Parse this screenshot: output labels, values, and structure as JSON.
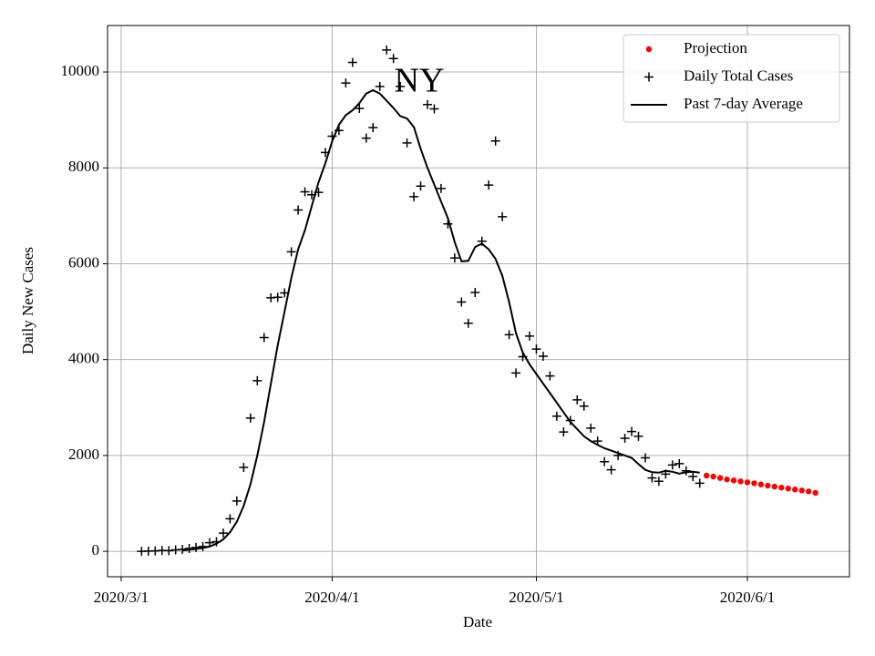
{
  "chart_data": {
    "type": "line",
    "annotations": [
      "NY"
    ],
    "xlabel": "Date",
    "ylabel": "Daily New Cases",
    "xlim": [
      "2020/2/28",
      "2020/6/16"
    ],
    "xticks": [
      "2020/3/1",
      "2020/4/1",
      "2020/5/1",
      "2020/6/1"
    ],
    "ylim": [
      -530,
      10970
    ],
    "yticks": [
      0,
      2000,
      4000,
      6000,
      8000,
      10000
    ],
    "grid": true,
    "legend": "upper right",
    "series": [
      {
        "name": "Projection",
        "color": "#ff0000",
        "style": "dot",
        "x": [
          "2020/5/26",
          "2020/5/27",
          "2020/5/28",
          "2020/5/29",
          "2020/5/30",
          "2020/5/31",
          "2020/6/1",
          "2020/6/2",
          "2020/6/3",
          "2020/6/4",
          "2020/6/5",
          "2020/6/6",
          "2020/6/7",
          "2020/6/8",
          "2020/6/9",
          "2020/6/10",
          "2020/6/11"
        ],
        "values": [
          1580,
          1560,
          1530,
          1500,
          1480,
          1460,
          1440,
          1420,
          1395,
          1370,
          1350,
          1330,
          1310,
          1290,
          1270,
          1250,
          1220
        ]
      },
      {
        "name": "Daily Total Cases",
        "color": "#000000",
        "style": "plus",
        "x": [
          "2020/3/4",
          "2020/3/5",
          "2020/3/6",
          "2020/3/7",
          "2020/3/8",
          "2020/3/9",
          "2020/3/10",
          "2020/3/11",
          "2020/3/12",
          "2020/3/13",
          "2020/3/14",
          "2020/3/15",
          "2020/3/16",
          "2020/3/17",
          "2020/3/18",
          "2020/3/19",
          "2020/3/20",
          "2020/3/21",
          "2020/3/22",
          "2020/3/23",
          "2020/3/24",
          "2020/3/25",
          "2020/3/26",
          "2020/3/27",
          "2020/3/28",
          "2020/3/29",
          "2020/3/30",
          "2020/3/31",
          "2020/4/1",
          "2020/4/2",
          "2020/4/3",
          "2020/4/4",
          "2020/4/5",
          "2020/4/6",
          "2020/4/7",
          "2020/4/8",
          "2020/4/9",
          "2020/4/10",
          "2020/4/11",
          "2020/4/12",
          "2020/4/13",
          "2020/4/14",
          "2020/4/15",
          "2020/4/16",
          "2020/4/17",
          "2020/4/18",
          "2020/4/19",
          "2020/4/20",
          "2020/4/21",
          "2020/4/22",
          "2020/4/23",
          "2020/4/24",
          "2020/4/25",
          "2020/4/26",
          "2020/4/27",
          "2020/4/28",
          "2020/4/29",
          "2020/4/30",
          "2020/5/1",
          "2020/5/2",
          "2020/5/3",
          "2020/5/4",
          "2020/5/5",
          "2020/5/6",
          "2020/5/7",
          "2020/5/8",
          "2020/5/9",
          "2020/5/10",
          "2020/5/11",
          "2020/5/12",
          "2020/5/13",
          "2020/5/14",
          "2020/5/15",
          "2020/5/16",
          "2020/5/17",
          "2020/5/18",
          "2020/5/19",
          "2020/5/20",
          "2020/5/21",
          "2020/5/22",
          "2020/5/23",
          "2020/5/24",
          "2020/5/25"
        ],
        "values": [
          0,
          5,
          10,
          20,
          15,
          30,
          40,
          60,
          80,
          100,
          180,
          200,
          380,
          680,
          1050,
          1750,
          2780,
          3560,
          4460,
          5290,
          5300,
          5390,
          6250,
          7120,
          7500,
          7440,
          7490,
          8320,
          8660,
          8780,
          9770,
          10200,
          9240,
          8620,
          8840,
          9700,
          10460,
          10280,
          9700,
          8520,
          7400,
          7620,
          9320,
          9230,
          7570,
          6830,
          6120,
          5200,
          4760,
          5400,
          6470,
          7640,
          8560,
          6980,
          4520,
          3720,
          4060,
          4490,
          4220,
          4070,
          3660,
          2820,
          2490,
          2730,
          3160,
          3030,
          2570,
          2300,
          1870,
          1700,
          2000,
          2360,
          2500,
          2400,
          1950,
          1530,
          1460,
          1610,
          1800,
          1830,
          1680,
          1560,
          1420
        ]
      },
      {
        "name": "Past 7-day Average",
        "color": "#000000",
        "style": "line",
        "x": [
          "2020/3/10",
          "2020/3/11",
          "2020/3/12",
          "2020/3/13",
          "2020/3/14",
          "2020/3/15",
          "2020/3/16",
          "2020/3/17",
          "2020/3/18",
          "2020/3/19",
          "2020/3/20",
          "2020/3/21",
          "2020/3/22",
          "2020/3/23",
          "2020/3/24",
          "2020/3/25",
          "2020/3/26",
          "2020/3/27",
          "2020/3/28",
          "2020/3/29",
          "2020/3/30",
          "2020/3/31",
          "2020/4/1",
          "2020/4/2",
          "2020/4/3",
          "2020/4/4",
          "2020/4/5",
          "2020/4/6",
          "2020/4/7",
          "2020/4/8",
          "2020/4/9",
          "2020/4/10",
          "2020/4/11",
          "2020/4/12",
          "2020/4/13",
          "2020/4/14",
          "2020/4/15",
          "2020/4/16",
          "2020/4/17",
          "2020/4/18",
          "2020/4/19",
          "2020/4/20",
          "2020/4/21",
          "2020/4/22",
          "2020/4/23",
          "2020/4/24",
          "2020/4/25",
          "2020/4/26",
          "2020/4/27",
          "2020/4/28",
          "2020/4/29",
          "2020/4/30",
          "2020/5/1",
          "2020/5/2",
          "2020/5/3",
          "2020/5/4",
          "2020/5/5",
          "2020/5/6",
          "2020/5/7",
          "2020/5/8",
          "2020/5/9",
          "2020/5/10",
          "2020/5/11",
          "2020/5/12",
          "2020/5/13",
          "2020/5/14",
          "2020/5/15",
          "2020/5/16",
          "2020/5/17",
          "2020/5/18",
          "2020/5/19",
          "2020/5/20",
          "2020/5/21",
          "2020/5/22",
          "2020/5/23",
          "2020/5/24",
          "2020/5/25"
        ],
        "values": [
          20,
          35,
          50,
          70,
          100,
          160,
          250,
          400,
          620,
          950,
          1400,
          2000,
          2700,
          3500,
          4300,
          5000,
          5700,
          6300,
          6700,
          7200,
          7700,
          8100,
          8550,
          8900,
          9100,
          9200,
          9350,
          9550,
          9620,
          9550,
          9400,
          9250,
          9080,
          9030,
          8850,
          8400,
          8000,
          7650,
          7300,
          6950,
          6450,
          6050,
          6060,
          6350,
          6420,
          6300,
          6100,
          5750,
          5200,
          4550,
          4150,
          3900,
          3700,
          3500,
          3300,
          3100,
          2900,
          2700,
          2550,
          2400,
          2300,
          2220,
          2150,
          2100,
          2050,
          2000,
          1950,
          1820,
          1700,
          1650,
          1640,
          1680,
          1660,
          1620,
          1650,
          1660,
          1640
        ]
      }
    ]
  }
}
